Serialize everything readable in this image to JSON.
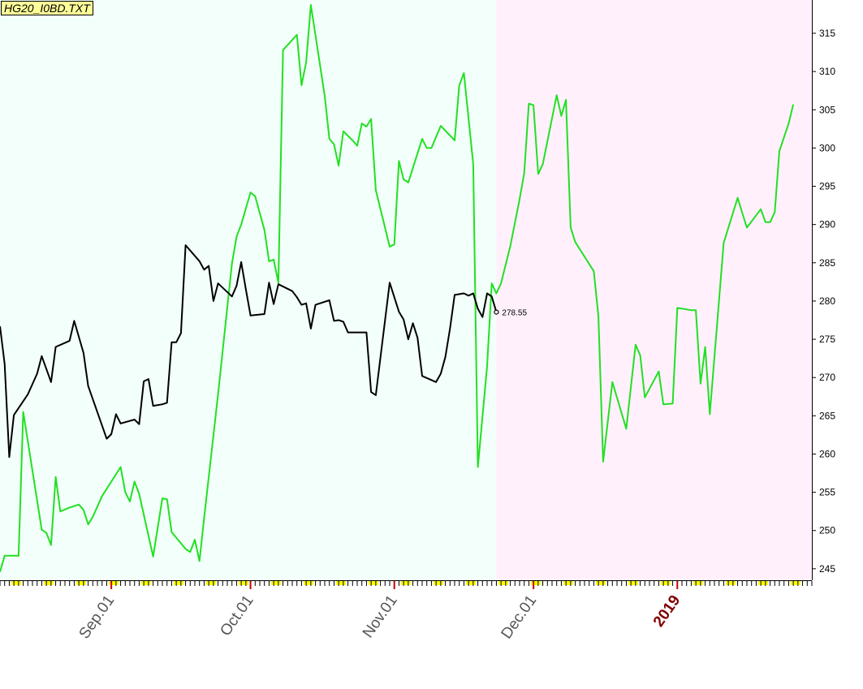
{
  "title": "HG20_I0BD.TXT",
  "colors": {
    "background_left": "#f3fffb",
    "background_right": "#fff0fc",
    "series_green": "#22e022",
    "series_black": "#000000",
    "tick_marker": "#ffff00",
    "tick_marker_red": "#cc0000",
    "year_label": "#800000",
    "month_label": "#555555"
  },
  "chart_data": {
    "type": "line",
    "title": "HG20_I0BD.TXT",
    "xlabel": "",
    "ylabel": "",
    "ylim": [
      243.5,
      318.5
    ],
    "y_ticks": [
      245,
      250,
      255,
      260,
      265,
      270,
      275,
      280,
      285,
      290,
      295,
      300,
      305,
      310,
      315
    ],
    "x_axis": {
      "start_date": "2018-08-08",
      "end_date": "2019-01-30",
      "shaded_boundary_date": "2018-11-23",
      "tick_labels": [
        {
          "label": "Sep.01",
          "date": "2018-09-01",
          "year": false
        },
        {
          "label": "Oct.01",
          "date": "2018-10-01",
          "year": false
        },
        {
          "label": "Nov.01",
          "date": "2018-11-01",
          "year": false
        },
        {
          "label": "Dec.01",
          "date": "2018-12-01",
          "year": false
        },
        {
          "label": "2019",
          "date": "2019-01-01",
          "year": true
        }
      ]
    },
    "grid": false,
    "last_value_label": "278.55",
    "series": [
      {
        "color": "#22e022",
        "points": [
          [
            "2018-08-08",
            244.6
          ],
          [
            "2018-08-09",
            246.7
          ],
          [
            "2018-08-11",
            246.7
          ],
          [
            "2018-08-12",
            246.7
          ],
          [
            "2018-08-13",
            265.5
          ],
          [
            "2018-08-17",
            250.1
          ],
          [
            "2018-08-18",
            249.7
          ],
          [
            "2018-08-19",
            248.1
          ],
          [
            "2018-08-20",
            257.0
          ],
          [
            "2018-08-21",
            252.5
          ],
          [
            "2018-08-23",
            253.0
          ],
          [
            "2018-08-25",
            253.4
          ],
          [
            "2018-08-26",
            252.7
          ],
          [
            "2018-08-27",
            250.8
          ],
          [
            "2018-08-28",
            251.8
          ],
          [
            "2018-08-30",
            254.5
          ],
          [
            "2018-09-03",
            258.3
          ],
          [
            "2018-09-04",
            255.0
          ],
          [
            "2018-09-05",
            253.8
          ],
          [
            "2018-09-06",
            256.4
          ],
          [
            "2018-09-07",
            254.8
          ],
          [
            "2018-09-10",
            246.6
          ],
          [
            "2018-09-12",
            254.2
          ],
          [
            "2018-09-13",
            254.1
          ],
          [
            "2018-09-14",
            249.8
          ],
          [
            "2018-09-17",
            247.6
          ],
          [
            "2018-09-18",
            247.2
          ],
          [
            "2018-09-19",
            248.8
          ],
          [
            "2018-09-20",
            246.0
          ],
          [
            "2018-09-21",
            251.6
          ],
          [
            "2018-09-24",
            267.8
          ],
          [
            "2018-09-27",
            284.9
          ],
          [
            "2018-09-28",
            288.4
          ],
          [
            "2018-09-29",
            290.0
          ],
          [
            "2018-10-01",
            294.2
          ],
          [
            "2018-10-02",
            293.7
          ],
          [
            "2018-10-04",
            289.3
          ],
          [
            "2018-10-05",
            285.2
          ],
          [
            "2018-10-06",
            285.4
          ],
          [
            "2018-10-07",
            282.4
          ],
          [
            "2018-10-08",
            312.8
          ],
          [
            "2018-10-11",
            314.8
          ],
          [
            "2018-10-12",
            308.2
          ],
          [
            "2018-10-13",
            311.2
          ],
          [
            "2018-10-14",
            318.7
          ],
          [
            "2018-10-17",
            306.8
          ],
          [
            "2018-10-18",
            301.2
          ],
          [
            "2018-10-19",
            300.5
          ],
          [
            "2018-10-20",
            297.7
          ],
          [
            "2018-10-21",
            302.2
          ],
          [
            "2018-10-23",
            301.0
          ],
          [
            "2018-10-24",
            300.3
          ],
          [
            "2018-10-25",
            303.2
          ],
          [
            "2018-10-26",
            302.8
          ],
          [
            "2018-10-27",
            303.8
          ],
          [
            "2018-10-28",
            294.5
          ],
          [
            "2018-10-31",
            287.1
          ],
          [
            "2018-11-01",
            287.4
          ],
          [
            "2018-11-02",
            298.3
          ],
          [
            "2018-11-03",
            295.9
          ],
          [
            "2018-11-04",
            295.5
          ],
          [
            "2018-11-07",
            301.2
          ],
          [
            "2018-11-08",
            300.0
          ],
          [
            "2018-11-09",
            300.0
          ],
          [
            "2018-11-11",
            302.9
          ],
          [
            "2018-11-14",
            301.0
          ],
          [
            "2018-11-15",
            308.2
          ],
          [
            "2018-11-16",
            309.8
          ],
          [
            "2018-11-18",
            297.9
          ],
          [
            "2018-11-19",
            258.3
          ],
          [
            "2018-11-21",
            271.5
          ],
          [
            "2018-11-22",
            282.3
          ],
          [
            "2018-11-23",
            281.0
          ],
          [
            "2018-11-24",
            282.3
          ],
          [
            "2018-11-26",
            287.2
          ],
          [
            "2018-11-28",
            293.3
          ],
          [
            "2018-11-29",
            296.7
          ],
          [
            "2018-11-30",
            305.8
          ],
          [
            "2018-12-01",
            305.6
          ],
          [
            "2018-12-02",
            296.6
          ],
          [
            "2018-12-03",
            297.9
          ],
          [
            "2018-12-06",
            306.9
          ],
          [
            "2018-12-07",
            304.2
          ],
          [
            "2018-12-08",
            306.3
          ],
          [
            "2018-12-09",
            289.6
          ],
          [
            "2018-12-10",
            287.7
          ],
          [
            "2018-12-14",
            283.9
          ],
          [
            "2018-12-15",
            278.0
          ],
          [
            "2018-12-16",
            259.0
          ],
          [
            "2018-12-18",
            269.4
          ],
          [
            "2018-12-21",
            263.3
          ],
          [
            "2018-12-23",
            274.3
          ],
          [
            "2018-12-24",
            272.9
          ],
          [
            "2018-12-25",
            267.4
          ],
          [
            "2018-12-28",
            270.8
          ],
          [
            "2018-12-29",
            266.5
          ],
          [
            "2018-12-31",
            266.6
          ],
          [
            "2019-01-01",
            279.1
          ],
          [
            "2019-01-04",
            278.8
          ],
          [
            "2019-01-05",
            278.8
          ],
          [
            "2019-01-06",
            269.2
          ],
          [
            "2019-01-07",
            274.0
          ],
          [
            "2019-01-08",
            265.2
          ],
          [
            "2019-01-11",
            287.6
          ],
          [
            "2019-01-14",
            293.5
          ],
          [
            "2019-01-15",
            291.5
          ],
          [
            "2019-01-16",
            289.6
          ],
          [
            "2019-01-19",
            292.0
          ],
          [
            "2019-01-20",
            290.3
          ],
          [
            "2019-01-21",
            290.3
          ],
          [
            "2019-01-22",
            291.6
          ],
          [
            "2019-01-23",
            299.6
          ],
          [
            "2019-01-25",
            303.2
          ],
          [
            "2019-01-26",
            305.7
          ]
        ]
      },
      {
        "color": "#000000",
        "points": [
          [
            "2018-08-08",
            276.7
          ],
          [
            "2018-08-09",
            271.8
          ],
          [
            "2018-08-10",
            259.6
          ],
          [
            "2018-08-11",
            265.1
          ],
          [
            "2018-08-14",
            267.8
          ],
          [
            "2018-08-16",
            270.5
          ],
          [
            "2018-08-17",
            272.8
          ],
          [
            "2018-08-19",
            269.4
          ],
          [
            "2018-08-20",
            274.0
          ],
          [
            "2018-08-23",
            274.8
          ],
          [
            "2018-08-24",
            277.4
          ],
          [
            "2018-08-26",
            273.2
          ],
          [
            "2018-08-27",
            268.9
          ],
          [
            "2018-08-31",
            262.0
          ],
          [
            "2018-09-01",
            262.6
          ],
          [
            "2018-09-02",
            265.2
          ],
          [
            "2018-09-03",
            264.0
          ],
          [
            "2018-09-06",
            264.5
          ],
          [
            "2018-09-07",
            263.9
          ],
          [
            "2018-09-08",
            269.5
          ],
          [
            "2018-09-09",
            269.8
          ],
          [
            "2018-09-10",
            266.3
          ],
          [
            "2018-09-12",
            266.5
          ],
          [
            "2018-09-13",
            266.7
          ],
          [
            "2018-09-14",
            274.6
          ],
          [
            "2018-09-15",
            274.6
          ],
          [
            "2018-09-16",
            275.8
          ],
          [
            "2018-09-17",
            287.3
          ],
          [
            "2018-09-19",
            285.9
          ],
          [
            "2018-09-20",
            285.2
          ],
          [
            "2018-09-21",
            284.1
          ],
          [
            "2018-09-22",
            284.6
          ],
          [
            "2018-09-23",
            280.0
          ],
          [
            "2018-09-24",
            282.3
          ],
          [
            "2018-09-27",
            280.6
          ],
          [
            "2018-09-28",
            282.0
          ],
          [
            "2018-09-29",
            285.1
          ],
          [
            "2018-09-30",
            281.5
          ],
          [
            "2018-10-01",
            278.1
          ],
          [
            "2018-10-04",
            278.3
          ],
          [
            "2018-10-05",
            282.4
          ],
          [
            "2018-10-06",
            279.6
          ],
          [
            "2018-10-07",
            282.2
          ],
          [
            "2018-10-10",
            281.3
          ],
          [
            "2018-10-11",
            280.5
          ],
          [
            "2018-10-12",
            279.5
          ],
          [
            "2018-10-13",
            279.7
          ],
          [
            "2018-10-14",
            276.4
          ],
          [
            "2018-10-15",
            279.5
          ],
          [
            "2018-10-18",
            280.1
          ],
          [
            "2018-10-19",
            277.4
          ],
          [
            "2018-10-20",
            277.5
          ],
          [
            "2018-10-21",
            277.3
          ],
          [
            "2018-10-22",
            275.9
          ],
          [
            "2018-10-26",
            275.9
          ],
          [
            "2018-10-27",
            268.1
          ],
          [
            "2018-10-28",
            267.7
          ],
          [
            "2018-10-31",
            282.4
          ],
          [
            "2018-11-02",
            278.6
          ],
          [
            "2018-11-03",
            277.6
          ],
          [
            "2018-11-04",
            275.0
          ],
          [
            "2018-11-05",
            277.1
          ],
          [
            "2018-11-06",
            275.2
          ],
          [
            "2018-11-07",
            270.2
          ],
          [
            "2018-11-10",
            269.4
          ],
          [
            "2018-11-11",
            270.5
          ],
          [
            "2018-11-12",
            272.7
          ],
          [
            "2018-11-13",
            276.4
          ],
          [
            "2018-11-14",
            280.8
          ],
          [
            "2018-11-16",
            281.0
          ],
          [
            "2018-11-17",
            280.7
          ],
          [
            "2018-11-18",
            281.0
          ],
          [
            "2018-11-19",
            279.0
          ],
          [
            "2018-11-20",
            277.9
          ],
          [
            "2018-11-21",
            281.0
          ],
          [
            "2018-11-22",
            280.6
          ],
          [
            "2018-11-23",
            278.55
          ]
        ]
      }
    ]
  }
}
